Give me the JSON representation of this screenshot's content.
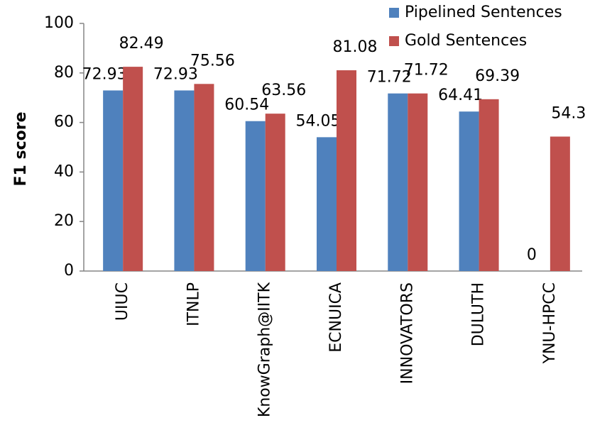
{
  "chart_data": {
    "type": "bar",
    "ylabel": "F1 score",
    "categories": [
      "UIUC",
      "ITNLP",
      "KnowGraph@IITK",
      "ECNUICA",
      "INNOVATORS",
      "DULUTH",
      "YNU-HPCC"
    ],
    "series": [
      {
        "name": "Pipelined Sentences",
        "color": "#4f81bd",
        "values": [
          72.93,
          72.93,
          60.54,
          54.05,
          71.72,
          64.41,
          0
        ]
      },
      {
        "name": "Gold Sentences",
        "color": "#c0504d",
        "values": [
          82.49,
          75.56,
          63.56,
          81.08,
          71.72,
          69.39,
          54.3
        ]
      }
    ],
    "ylim": [
      0,
      100
    ],
    "yticks": [
      0,
      20,
      40,
      60,
      80,
      100
    ],
    "grid": false,
    "legend": "top-right"
  }
}
